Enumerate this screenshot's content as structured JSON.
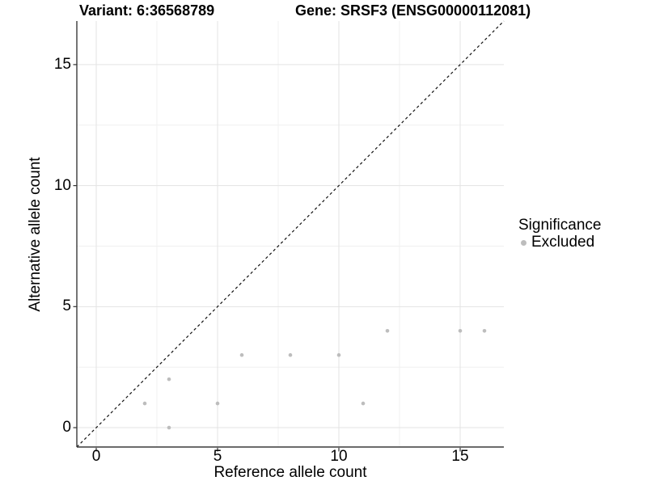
{
  "chart_data": {
    "type": "scatter",
    "title_left": "Variant: 6:36568789",
    "title_right": "Gene: SRSF3 (ENSG00000112081)",
    "xlabel": "Reference allele count",
    "ylabel": "Alternative allele count",
    "xlim": [
      -0.8,
      16.8
    ],
    "ylim": [
      -0.8,
      16.8
    ],
    "x_ticks": [
      0,
      5,
      10,
      15
    ],
    "y_ticks": [
      0,
      5,
      10,
      15
    ],
    "x_minor_gridlines": [
      2.5,
      7.5,
      12.5
    ],
    "y_minor_gridlines": [
      2.5,
      7.5,
      12.5
    ],
    "grid": "major+minor",
    "reference_line": {
      "kind": "identity",
      "slope": 1,
      "intercept": 0,
      "style": "dashed",
      "color": "#111111"
    },
    "legend": {
      "title": "Significance",
      "position": "right",
      "entries": [
        {
          "label": "Excluded",
          "color": "#bdbdbd"
        }
      ]
    },
    "series": [
      {
        "name": "Excluded",
        "color": "#bdbdbd",
        "points": [
          [
            2,
            1
          ],
          [
            3,
            0
          ],
          [
            3,
            2
          ],
          [
            5,
            1
          ],
          [
            6,
            3
          ],
          [
            8,
            3
          ],
          [
            10,
            3
          ],
          [
            11,
            1
          ],
          [
            12,
            4
          ],
          [
            15,
            4
          ],
          [
            16,
            4
          ]
        ]
      }
    ],
    "colors": {
      "grid_major": "#e3e3e3",
      "grid_minor": "#f0f0f0",
      "axis": "#3a3a3a",
      "tick": "#333333",
      "point": "#bdbdbd",
      "background": "#ffffff"
    }
  }
}
